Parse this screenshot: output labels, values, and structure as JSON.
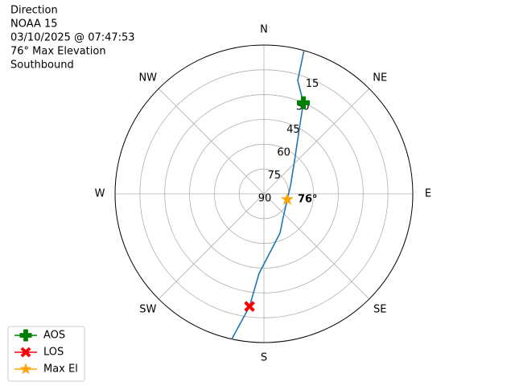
{
  "chart_data": {
    "type": "polar",
    "title_lines": [
      "Direction",
      "NOAA 15",
      "03/10/2025 @ 07:47:53",
      "76° Max Elevation",
      "Southbound"
    ],
    "xticks": [
      {
        "value": 0,
        "label": "N"
      },
      {
        "value": 45,
        "label": "NE"
      },
      {
        "value": 90,
        "label": "E"
      },
      {
        "value": 135,
        "label": "SE"
      },
      {
        "value": 180,
        "label": "S"
      },
      {
        "value": 225,
        "label": "SW"
      },
      {
        "value": 270,
        "label": "W"
      },
      {
        "value": 315,
        "label": "NW"
      }
    ],
    "ylim": [
      90,
      0
    ],
    "yticks": [
      90,
      75,
      60,
      45,
      30,
      15
    ],
    "grid": true,
    "legend": "lower left",
    "track": {
      "color": "#1f77b4",
      "x": [
        15.6,
        16.6,
        23.4,
        28.5,
        42.8,
        71.6,
        103.6,
        140.4,
        157.8,
        183.5,
        187.3,
        192.5
      ],
      "y": [
        0,
        18.4,
        30,
        45.1,
        62.8,
        73,
        75.5,
        71.7,
        64.3,
        41.7,
        21.3,
        0
      ]
    },
    "series": [
      {
        "name": "AOS",
        "color": "green",
        "marker": "plus",
        "x": [
          23.4
        ],
        "y": [
          30
        ]
      },
      {
        "name": "LOS",
        "color": "red",
        "marker": "x",
        "x": [
          187.3
        ],
        "y": [
          21.3
        ]
      },
      {
        "name": "Max El",
        "color": "orange",
        "marker": "star",
        "x": [
          103.6
        ],
        "y": [
          75.5
        ]
      }
    ],
    "annotation": {
      "text": "76°",
      "x": 103.6,
      "y": 75.5
    }
  }
}
